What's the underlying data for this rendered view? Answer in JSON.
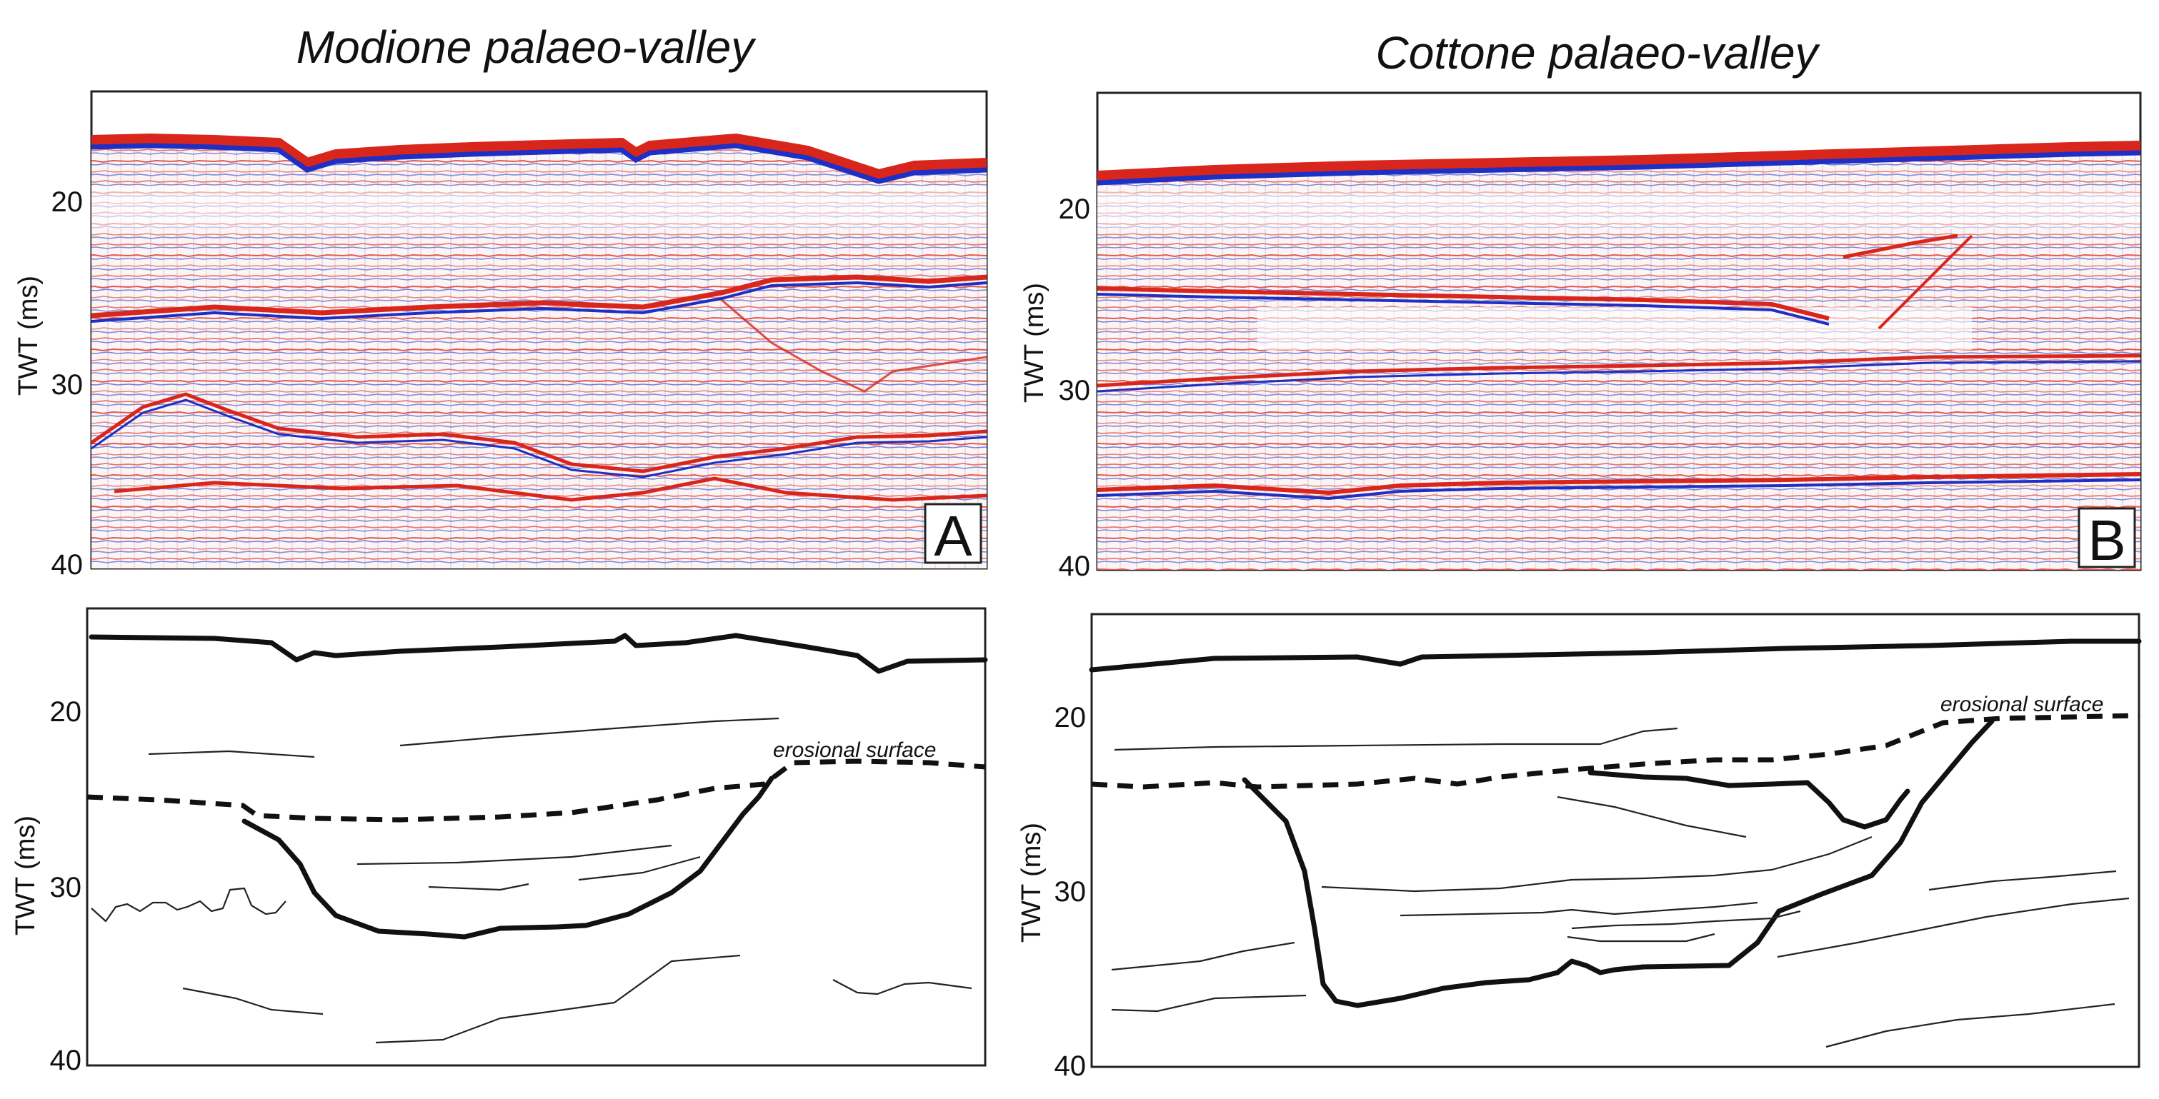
{
  "panels": {
    "left": {
      "title": "Modione palaeo-valley",
      "label": "A",
      "ylabel": "TWT (ms)",
      "ticks": [
        "20",
        "30",
        "40"
      ]
    },
    "right": {
      "title": "Cottone palaeo-valley",
      "label": "B",
      "ylabel": "TWT (ms)",
      "ticks": [
        "20",
        "30",
        "40"
      ]
    }
  },
  "interpretation": {
    "left": {
      "ylabel": "TWT (ms)",
      "ticks": [
        "20",
        "30",
        "40"
      ],
      "annotation": "erosional surface"
    },
    "right": {
      "ylabel": "TWT (ms)",
      "ticks": [
        "20",
        "30",
        "40"
      ],
      "annotation": "erosional surface"
    }
  },
  "colors": {
    "positive": "#d9261c",
    "negative": "#1d2fc4",
    "line": "#111111"
  }
}
